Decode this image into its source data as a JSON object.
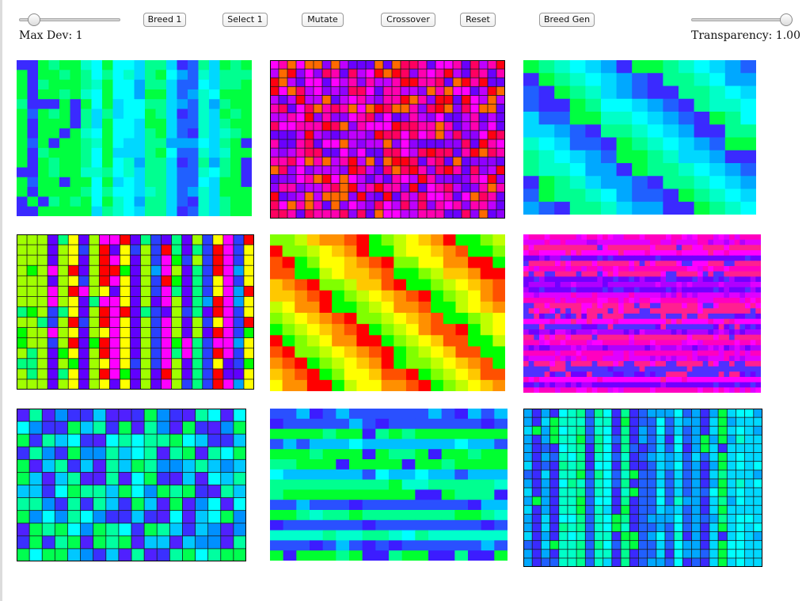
{
  "controls": {
    "max_dev_label": "Max Dev: 1",
    "transparency_label": "Transparency: 1.00",
    "max_dev_slider": {
      "min": 0,
      "max": 10,
      "value": 1
    },
    "transparency_slider": {
      "min": 0,
      "max": 1,
      "value": 1.0
    },
    "buttons": [
      {
        "id": "breed-1",
        "label": "Breed 1"
      },
      {
        "id": "select-1",
        "label": "Select 1"
      },
      {
        "id": "mutate",
        "label": "Mutate"
      },
      {
        "id": "crossover",
        "label": "Crossover"
      },
      {
        "id": "reset",
        "label": "Reset"
      },
      {
        "id": "breed-gen",
        "label": "Breed Gen"
      }
    ]
  },
  "palettes": {
    "cool": [
      "#00ff40",
      "#00ff90",
      "#00ffc8",
      "#00ffff",
      "#00d8ff",
      "#00a8ff",
      "#2060ff",
      "#3a2aff"
    ],
    "hot_magenta": [
      "#ff0010",
      "#ff0060",
      "#ff00b0",
      "#ff00ff",
      "#c000ff",
      "#9000ff",
      "#6a00ff",
      "#ff6a00"
    ],
    "rainbow": [
      "#00ff00",
      "#ffff00",
      "#ff0000",
      "#ff00ff",
      "#6000ff",
      "#2a40ff",
      "#00a0ff",
      "#00ff80",
      "#a0ff00"
    ],
    "warm": [
      "#00ff00",
      "#80ff00",
      "#c0ff00",
      "#ffff00",
      "#ffc800",
      "#ff9000",
      "#ff5000",
      "#ff0000"
    ],
    "magenta_blue": [
      "#ff00ff",
      "#ff00c0",
      "#e000ff",
      "#b000ff",
      "#7000ff",
      "#5030ff",
      "#ff2090"
    ],
    "cool_blocks": [
      "#00ff50",
      "#00ffa0",
      "#00ffff",
      "#00c8ff",
      "#0090ff",
      "#3a30ff",
      "#5020ff"
    ],
    "cool_bands": [
      "#00ff30",
      "#00ff90",
      "#00ffcc",
      "#00ffff",
      "#00c0ff",
      "#2a50ff",
      "#3c1cff"
    ]
  },
  "organisms": [
    {
      "id": 1,
      "cols": 22,
      "rows": 16,
      "pattern": "vertical",
      "palette": "cool",
      "grid": false
    },
    {
      "id": 2,
      "cols": 27,
      "rows": 18,
      "pattern": "random",
      "palette": "hot_magenta",
      "grid": true
    },
    {
      "id": 3,
      "cols": 15,
      "rows": 12,
      "pattern": "diagonal",
      "palette": "cool",
      "grid": false
    },
    {
      "id": 4,
      "cols": 23,
      "rows": 15,
      "pattern": "vertical",
      "palette": "rainbow",
      "grid": true
    },
    {
      "id": 5,
      "cols": 19,
      "rows": 14,
      "pattern": "diagonal",
      "palette": "warm",
      "grid": false
    },
    {
      "id": 6,
      "cols": 45,
      "rows": 30,
      "pattern": "horizontal",
      "palette": "magenta_blue",
      "grid": false
    },
    {
      "id": 7,
      "cols": 18,
      "rows": 12,
      "pattern": "random",
      "palette": "cool_blocks",
      "grid": true
    },
    {
      "id": 8,
      "cols": 18,
      "rows": 15,
      "pattern": "horizontal",
      "palette": "cool_bands",
      "grid": false
    },
    {
      "id": 9,
      "cols": 27,
      "rows": 18,
      "pattern": "vertical",
      "palette": "cool",
      "grid": true
    }
  ]
}
